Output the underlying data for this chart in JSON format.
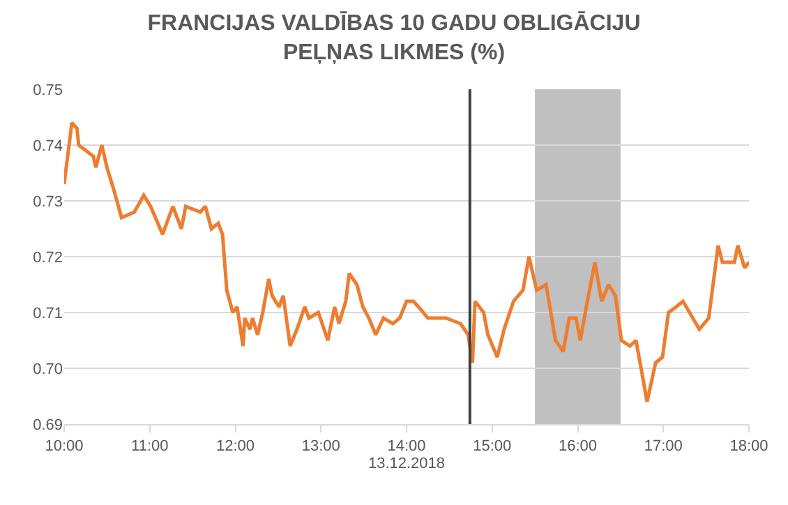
{
  "chart_data": {
    "type": "line",
    "title": "FRANCIJAS VALDĪBAS 10 GADU OBLIGĀCIJU\nPEĻŅAS LIKMES (%)",
    "xlabel": "13.12.2018",
    "x": [
      10.0,
      10.09,
      10.15,
      10.17,
      10.34,
      10.37,
      10.44,
      10.5,
      10.58,
      10.67,
      10.82,
      10.93,
      11.01,
      11.15,
      11.27,
      11.37,
      11.42,
      11.59,
      11.65,
      11.72,
      11.8,
      11.85,
      11.9,
      11.97,
      12.02,
      12.09,
      12.11,
      12.17,
      12.2,
      12.26,
      12.32,
      12.39,
      12.43,
      12.51,
      12.56,
      12.64,
      12.72,
      12.81,
      12.86,
      12.97,
      13.08,
      13.16,
      13.21,
      13.29,
      13.33,
      13.42,
      13.49,
      13.56,
      13.64,
      13.73,
      13.84,
      13.92,
      14.0,
      14.08,
      14.14,
      14.25,
      14.46,
      14.63,
      14.72,
      14.77,
      14.8,
      14.9,
      14.95,
      15.06,
      15.14,
      15.25,
      15.36,
      15.43,
      15.52,
      15.63,
      15.74,
      15.83,
      15.9,
      15.98,
      16.03,
      16.1,
      16.2,
      16.28,
      16.36,
      16.44,
      16.51,
      16.61,
      16.68,
      16.74,
      16.81,
      16.91,
      16.99,
      17.06,
      17.15,
      17.23,
      17.42,
      17.53,
      17.64,
      17.69,
      17.83,
      17.87,
      17.95,
      18.0
    ],
    "series": [
      {
        "color": "#ed7d31",
        "values": [
          0.733,
          0.744,
          0.743,
          0.74,
          0.738,
          0.736,
          0.74,
          0.736,
          0.732,
          0.727,
          0.728,
          0.731,
          0.729,
          0.724,
          0.729,
          0.725,
          0.729,
          0.728,
          0.729,
          0.725,
          0.726,
          0.724,
          0.714,
          0.71,
          0.711,
          0.704,
          0.709,
          0.707,
          0.709,
          0.706,
          0.71,
          0.716,
          0.713,
          0.711,
          0.713,
          0.704,
          0.707,
          0.711,
          0.709,
          0.71,
          0.705,
          0.711,
          0.708,
          0.712,
          0.717,
          0.715,
          0.711,
          0.709,
          0.706,
          0.709,
          0.708,
          0.709,
          0.712,
          0.712,
          0.711,
          0.709,
          0.709,
          0.708,
          0.706,
          0.701,
          0.712,
          0.71,
          0.706,
          0.702,
          0.707,
          0.712,
          0.714,
          0.72,
          0.714,
          0.715,
          0.705,
          0.703,
          0.709,
          0.709,
          0.705,
          0.711,
          0.719,
          0.712,
          0.715,
          0.713,
          0.705,
          0.704,
          0.705,
          0.7,
          0.694,
          0.701,
          0.702,
          0.71,
          0.711,
          0.712,
          0.707,
          0.709,
          0.722,
          0.719,
          0.719,
          0.722,
          0.718,
          0.719
        ]
      }
    ],
    "xlim": [
      10,
      18
    ],
    "xticks": [
      {
        "value": 10,
        "label": "10:00"
      },
      {
        "value": 11,
        "label": "11:00"
      },
      {
        "value": 12,
        "label": "12:00"
      },
      {
        "value": 13,
        "label": "13:00"
      },
      {
        "value": 14,
        "label": "14:00"
      },
      {
        "value": 15,
        "label": "15:00"
      },
      {
        "value": 16,
        "label": "16:00"
      },
      {
        "value": 17,
        "label": "17:00"
      },
      {
        "value": 18,
        "label": "18:00"
      }
    ],
    "ylim": [
      0.69,
      0.75
    ],
    "yticks": [
      {
        "value": 0.69,
        "label": "0.69"
      },
      {
        "value": 0.7,
        "label": "0.70"
      },
      {
        "value": 0.71,
        "label": "0.71"
      },
      {
        "value": 0.72,
        "label": "0.72"
      },
      {
        "value": 0.73,
        "label": "0.73"
      },
      {
        "value": 0.74,
        "label": "0.74"
      },
      {
        "value": 0.75,
        "label": "0.75"
      }
    ],
    "grid": "y",
    "line_style": "solid",
    "marker": "none",
    "ref_lines": [
      {
        "axis": "x",
        "value": 14.74,
        "color": "#404040",
        "line_style": "solid"
      }
    ],
    "bands": [
      {
        "axis": "x",
        "from": 15.5,
        "to": 16.5,
        "color": "#c0c0c0"
      }
    ]
  }
}
